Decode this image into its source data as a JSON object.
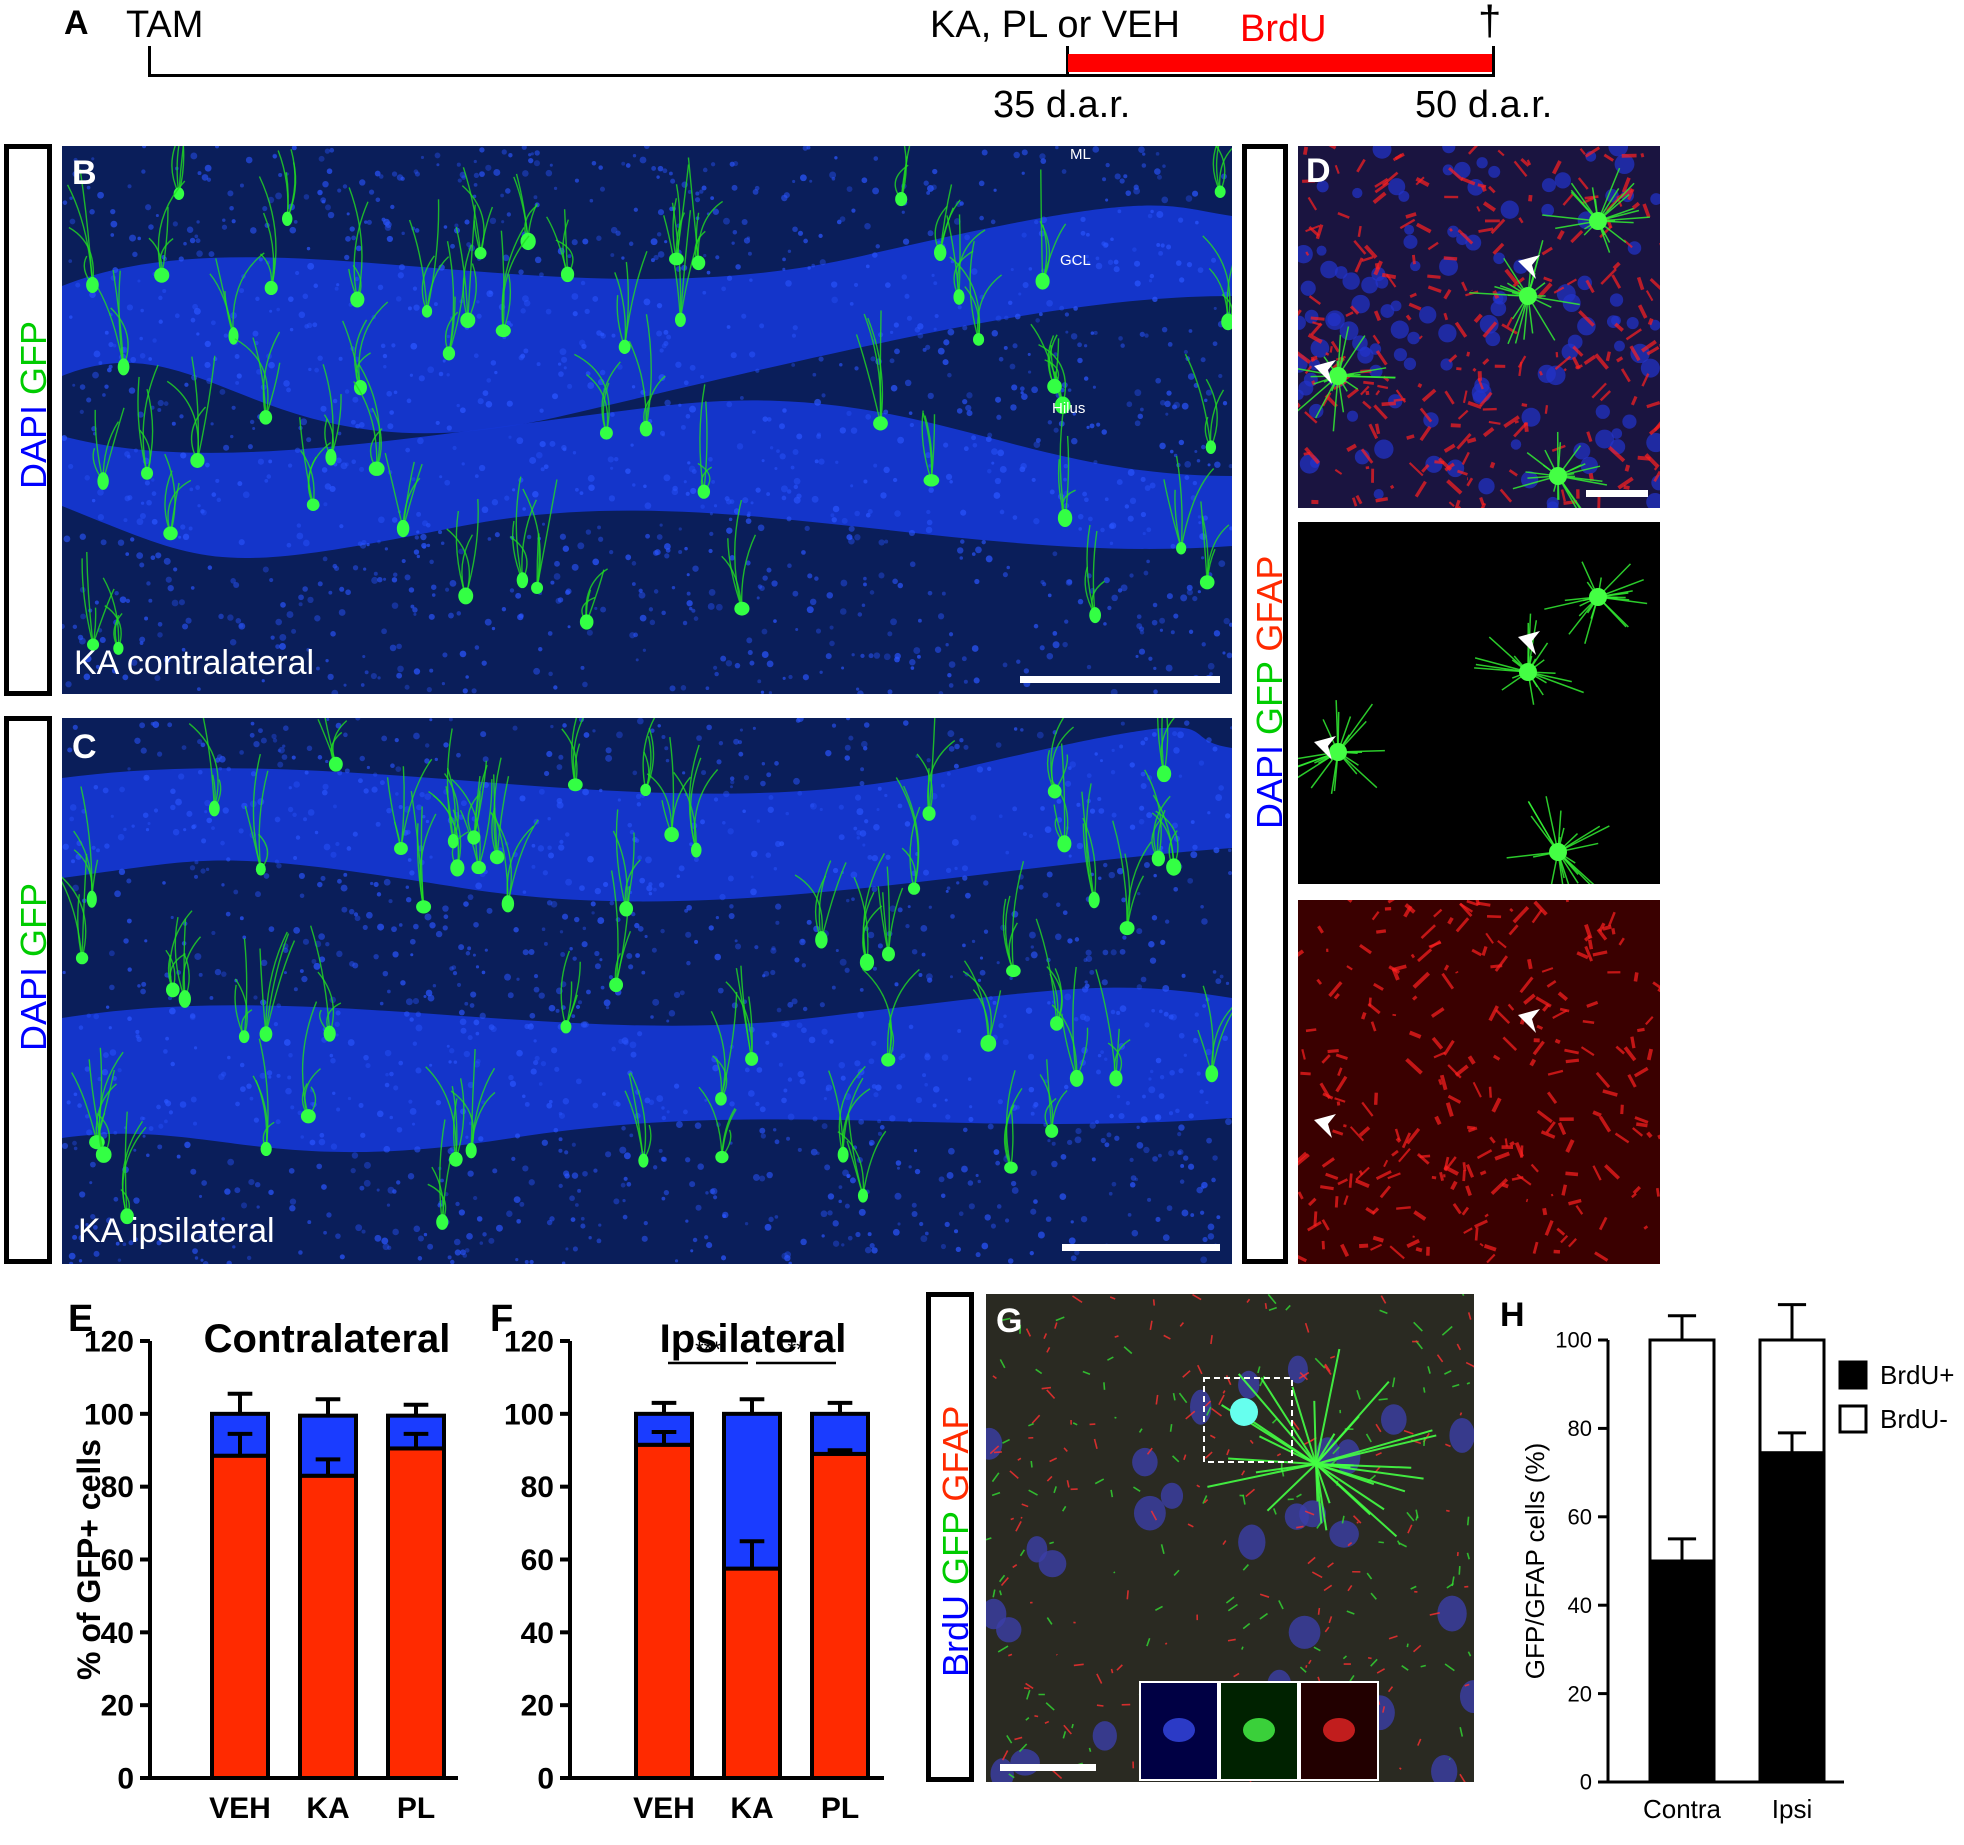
{
  "panel_labels": {
    "a": "A",
    "b": "B",
    "c": "C",
    "d": "D",
    "e": "E",
    "f": "F",
    "g": "G",
    "h": "H"
  },
  "timeline": {
    "start_label": "TAM",
    "treatment_label": "KA, PL or VEH",
    "brdu_label": "BrdU",
    "end_symbol": "†",
    "day35_label": "35 d.a.r.",
    "day50_label": "50 d.a.r.",
    "brdu_color": "#ff0000"
  },
  "stain_labels": {
    "b": [
      {
        "text": "DAPI",
        "color": "#0000ff"
      },
      {
        "text": " GFP",
        "color": "#00cc00"
      }
    ],
    "c": [
      {
        "text": "DAPI",
        "color": "#0000ff"
      },
      {
        "text": " GFP",
        "color": "#00cc00"
      }
    ],
    "d": [
      {
        "text": "DAPI",
        "color": "#0000ff"
      },
      {
        "text": " GFP",
        "color": "#00cc00"
      },
      {
        "text": " GFAP",
        "color": "#ff2a00"
      }
    ],
    "g": [
      {
        "text": "BrdU",
        "color": "#0000ff"
      },
      {
        "text": " GFP",
        "color": "#00cc00"
      },
      {
        "text": " GFAP",
        "color": "#ff2a00"
      }
    ]
  },
  "images": {
    "b_caption": "KA contralateral",
    "c_caption": "KA ipsilateral",
    "b_region_ml": "ML",
    "b_region_gcl": "GCL",
    "b_region_hilus": "Hilus"
  },
  "chart_data": [
    {
      "type": "bar",
      "stacked": true,
      "title": "Contralateral",
      "ylabel": "% of GFP+ cells",
      "ylim": [
        0,
        120
      ],
      "yticks": [
        0,
        20,
        40,
        60,
        80,
        100,
        120
      ],
      "categories": [
        "VEH",
        "KA",
        "PL"
      ],
      "series": [
        {
          "values": [
            88.5,
            83,
            90.5
          ],
          "errors": [
            6,
            4.5,
            4
          ],
          "color": "#ff2a00"
        },
        {
          "values": [
            11.5,
            16.5,
            9
          ],
          "errors": [
            5.5,
            4.5,
            3
          ],
          "color": "#1a3cff"
        }
      ],
      "significance": []
    },
    {
      "type": "bar",
      "stacked": true,
      "title": "Ipsilateral",
      "ylabel": "",
      "ylim": [
        0,
        120
      ],
      "yticks": [
        0,
        20,
        40,
        60,
        80,
        100,
        120
      ],
      "categories": [
        "VEH",
        "KA",
        "PL"
      ],
      "series": [
        {
          "values": [
            91.5,
            57.5,
            89
          ],
          "errors": [
            3.5,
            7.5,
            1
          ],
          "color": "#ff2a00"
        },
        {
          "values": [
            8.5,
            42.5,
            11
          ],
          "errors": [
            3,
            4,
            3
          ],
          "color": "#1a3cff"
        }
      ],
      "significance": [
        {
          "from": "VEH",
          "to": "KA",
          "label": "***"
        },
        {
          "from": "KA",
          "to": "PL",
          "label": "**"
        }
      ]
    },
    {
      "type": "bar",
      "stacked": true,
      "title": "",
      "ylabel": "GFP/GFAP cells (%)",
      "ylim": [
        0,
        100
      ],
      "yticks": [
        0,
        20,
        40,
        60,
        80,
        100
      ],
      "categories": [
        "Contra",
        "Ipsi"
      ],
      "series": [
        {
          "name": "BrdU+",
          "values": [
            50,
            74.5
          ],
          "errors": [
            5,
            4.5
          ],
          "color": "#000000"
        },
        {
          "name": "BrdU-",
          "values": [
            50,
            25.5
          ],
          "errors": [
            5.5,
            8
          ],
          "color": "#ffffff"
        }
      ],
      "legend": "top-right",
      "significance": []
    }
  ]
}
